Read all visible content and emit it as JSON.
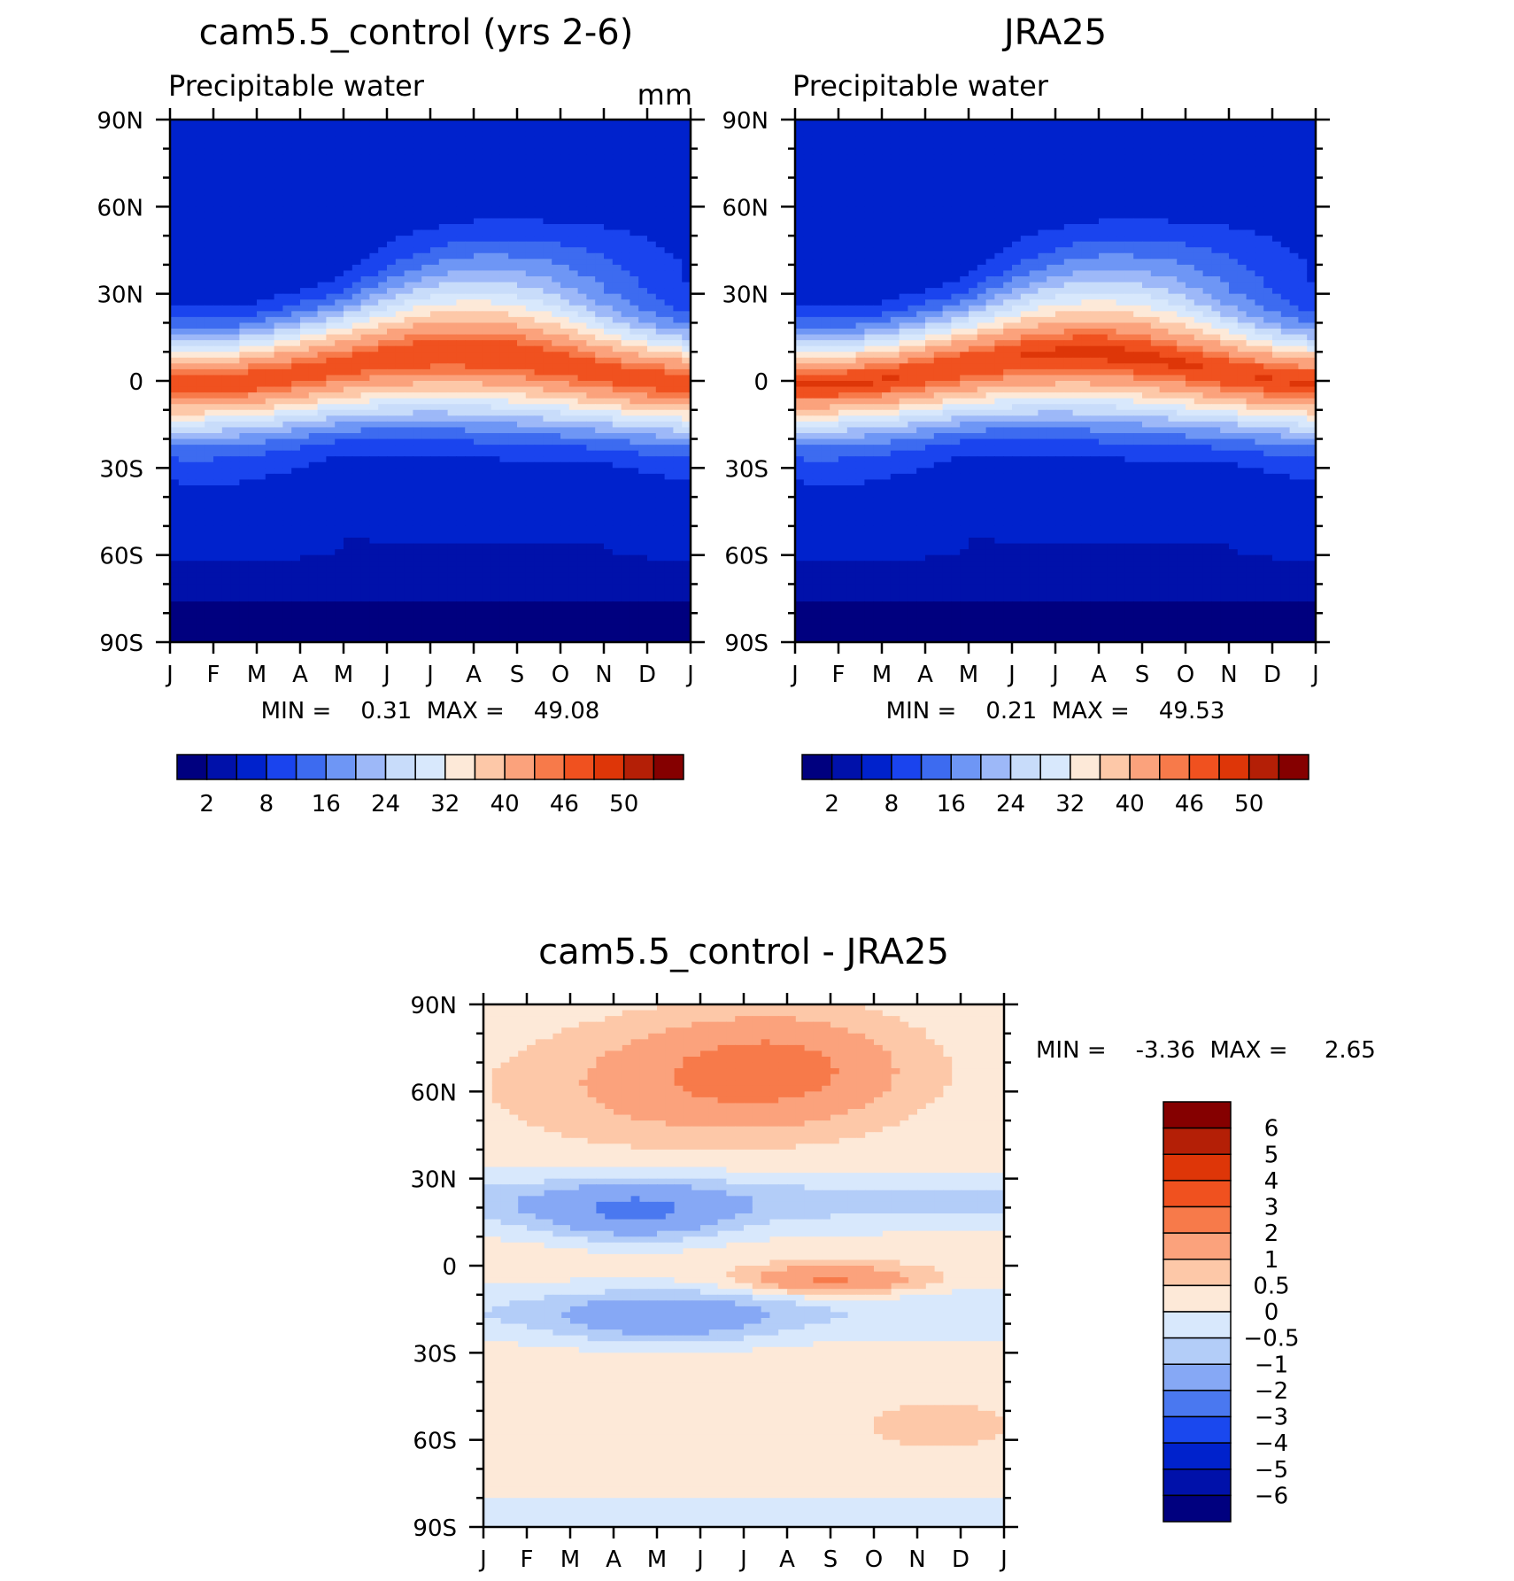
{
  "chart_data": [
    {
      "type": "heatmap",
      "title": "cam5.5_control (yrs 2-6)",
      "subtitle": "Precipitable water",
      "units": "mm",
      "x_ticks": [
        "J",
        "F",
        "M",
        "A",
        "M",
        "J",
        "J",
        "A",
        "S",
        "O",
        "N",
        "D",
        "J"
      ],
      "y_ticks": [
        "90N",
        "60N",
        "30N",
        "0",
        "30S",
        "60S",
        "90S"
      ],
      "ylim": [
        -90,
        90
      ],
      "stats_text": "MIN =    0.31  MAX =    49.08",
      "min": 0.31,
      "max": 49.08,
      "colorbar": {
        "labels": [
          "2",
          "8",
          "16",
          "24",
          "32",
          "40",
          "46",
          "50"
        ],
        "levels": [
          2,
          4,
          8,
          12,
          16,
          20,
          24,
          28,
          32,
          36,
          40,
          44,
          46,
          48,
          50
        ],
        "colors": [
          "#00007f",
          "#0011aa",
          "#0022cc",
          "#1a44ee",
          "#3d6bf0",
          "#6e96f5",
          "#9db8f8",
          "#c8dcfa",
          "#d8e8fc",
          "#fde9d8",
          "#fdc8a8",
          "#fba27c",
          "#f77a4a",
          "#f0511f",
          "#de3608",
          "#b41f06",
          "#850000"
        ]
      }
    },
    {
      "type": "heatmap",
      "title": "JRA25",
      "subtitle": "Precipitable water",
      "x_ticks": [
        "J",
        "F",
        "M",
        "A",
        "M",
        "J",
        "J",
        "A",
        "S",
        "O",
        "N",
        "D",
        "J"
      ],
      "y_ticks": [
        "90N",
        "60N",
        "30N",
        "0",
        "30S",
        "60S",
        "90S"
      ],
      "ylim": [
        -90,
        90
      ],
      "stats_text": "MIN =    0.21  MAX =    49.53",
      "min": 0.21,
      "max": 49.53,
      "colorbar": {
        "labels": [
          "2",
          "8",
          "16",
          "24",
          "32",
          "40",
          "46",
          "50"
        ],
        "levels": [
          2,
          4,
          8,
          12,
          16,
          20,
          24,
          28,
          32,
          36,
          40,
          44,
          46,
          48,
          50
        ],
        "colors": [
          "#00007f",
          "#0011aa",
          "#0022cc",
          "#1a44ee",
          "#3d6bf0",
          "#6e96f5",
          "#9db8f8",
          "#c8dcfa",
          "#d8e8fc",
          "#fde9d8",
          "#fdc8a8",
          "#fba27c",
          "#f77a4a",
          "#f0511f",
          "#de3608",
          "#b41f06",
          "#850000"
        ]
      }
    },
    {
      "type": "heatmap",
      "title": "cam5.5_control - JRA25",
      "x_ticks": [
        "J",
        "F",
        "M",
        "A",
        "M",
        "J",
        "J",
        "A",
        "S",
        "O",
        "N",
        "D",
        "J"
      ],
      "y_ticks": [
        "90N",
        "60N",
        "30N",
        "0",
        "30S",
        "60S",
        "90S"
      ],
      "ylim": [
        -90,
        90
      ],
      "stats_text": "MIN =    -3.36  MAX =     2.65",
      "min": -3.36,
      "max": 2.65,
      "colorbar": {
        "labels": [
          "6",
          "5",
          "4",
          "3",
          "2",
          "1",
          "0.5",
          "0",
          "-0.5",
          "-1",
          "-2",
          "-3",
          "-4",
          "-5",
          "-6"
        ],
        "colors": [
          "#850000",
          "#b41f06",
          "#de3608",
          "#f0511f",
          "#f77a4a",
          "#fba27c",
          "#fdc8a8",
          "#fde9d8",
          "#d8e8fc",
          "#b3cdf8",
          "#86a8f5",
          "#4a78f0",
          "#1a48ee",
          "#0022cc",
          "#0011aa",
          "#00007f"
        ]
      }
    }
  ]
}
